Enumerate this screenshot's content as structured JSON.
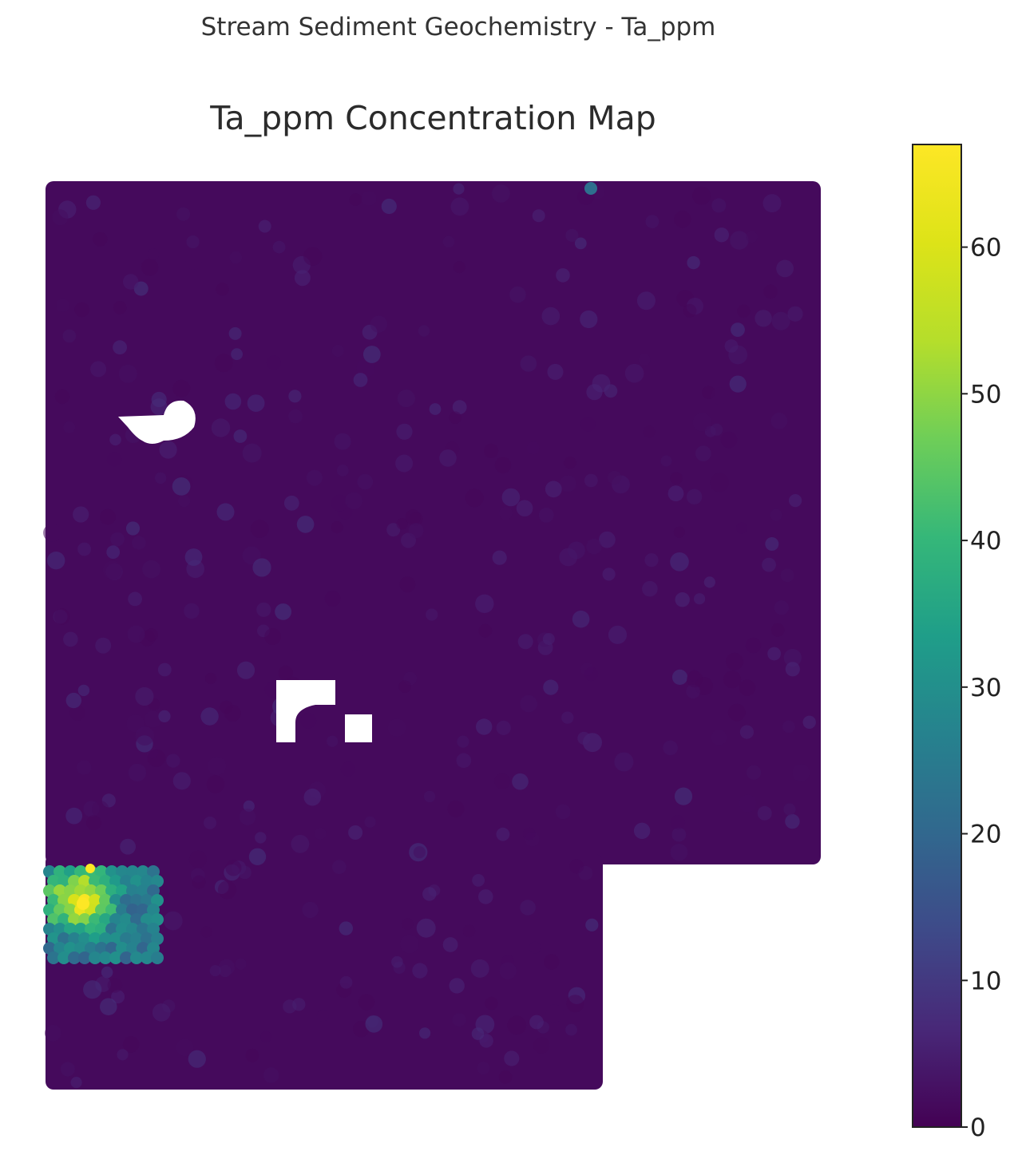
{
  "suptitle": "Stream Sediment Geochemistry - Ta_ppm",
  "chart_data": {
    "type": "heatmap",
    "title": "Ta_ppm Concentration Map",
    "variable": "Ta_ppm",
    "colormap": "viridis",
    "grid": false,
    "axes_visible": false,
    "colorbar": {
      "range": [
        0,
        67
      ],
      "ticks": [
        0,
        10,
        20,
        30,
        40,
        50,
        60
      ],
      "tick_labels": [
        "0",
        "10",
        "20",
        "30",
        "40",
        "50",
        "60"
      ],
      "placement": "right"
    },
    "background_value_range": [
      1,
      4
    ],
    "anomalies": [
      {
        "zone": "south-west hotspot",
        "value_range": [
          25,
          67
        ],
        "max_value": 67
      },
      {
        "zone": "north edge point",
        "value": 22
      }
    ]
  }
}
